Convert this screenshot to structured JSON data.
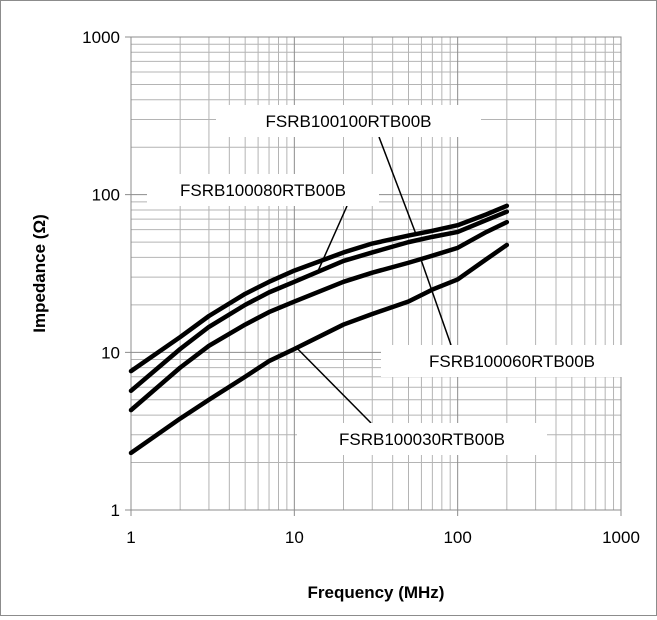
{
  "chart_data": {
    "type": "line",
    "x_scale": "log",
    "y_scale": "log",
    "xlim": [
      1,
      1000
    ],
    "ylim": [
      1,
      1000
    ],
    "x_ticks": [
      "1",
      "10",
      "100",
      "1000"
    ],
    "y_ticks": [
      "1",
      "10",
      "100",
      "1000"
    ],
    "xlabel": "Frequency (MHz)",
    "ylabel": "Impedance (Ω)",
    "grid": true,
    "legend": "none",
    "line_color": "#000000",
    "series": [
      {
        "name": "FSRB100100RTB00B",
        "x": [
          1,
          2,
          3,
          5,
          7,
          10,
          20,
          30,
          50,
          70,
          100,
          150,
          200
        ],
        "y": [
          7.6,
          12.5,
          17,
          23.5,
          28,
          33,
          43,
          49,
          55,
          59,
          64,
          75,
          85
        ]
      },
      {
        "name": "FSRB100080RTB00B",
        "x": [
          1,
          2,
          3,
          5,
          7,
          10,
          20,
          30,
          50,
          70,
          100,
          150,
          200
        ],
        "y": [
          5.7,
          10.5,
          14.5,
          20,
          24,
          28,
          38,
          43,
          50,
          54,
          58,
          69,
          78
        ]
      },
      {
        "name": "FSRB100060RTB00B",
        "x": [
          1,
          2,
          3,
          5,
          7,
          10,
          20,
          30,
          50,
          70,
          100,
          150,
          200
        ],
        "y": [
          4.3,
          8,
          11,
          15,
          18,
          21,
          28,
          32,
          37,
          41,
          46,
          58,
          67
        ]
      },
      {
        "name": "FSRB100030RTB00B",
        "x": [
          1,
          2,
          3,
          5,
          7,
          10,
          20,
          30,
          50,
          70,
          100,
          150,
          200
        ],
        "y": [
          2.3,
          3.8,
          5,
          7,
          8.8,
          10.5,
          15,
          17.5,
          21,
          25,
          29,
          39,
          48
        ]
      }
    ],
    "annotations": [
      {
        "text": "FSRB100100RTB00B",
        "target_x": 56,
        "target_y": 55
      },
      {
        "text": "FSRB100080RTB00B",
        "target_x": 14,
        "target_y": 33
      },
      {
        "text": "FSRB100060RTB00B",
        "target_x": 60,
        "target_y": 38
      },
      {
        "text": "FSRB100030RTB00B",
        "target_x": 10.5,
        "target_y": 10.5
      }
    ]
  }
}
